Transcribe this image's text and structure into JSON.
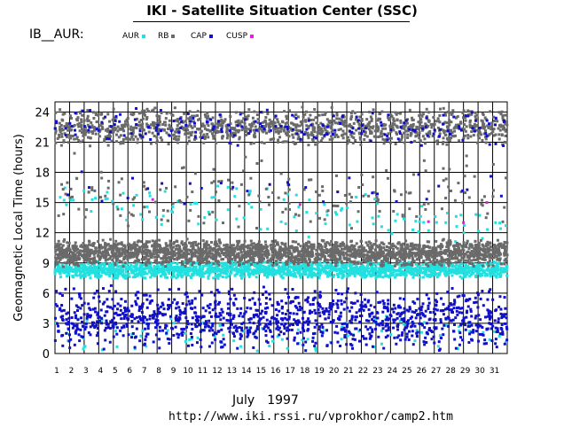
{
  "header": {
    "title": "IKI - Satellite Situation Center (SSC)",
    "panel_label": "IB__AUR:"
  },
  "legend": [
    {
      "label": "AUR",
      "color": "#22e0e0"
    },
    {
      "label": "RB",
      "color": "#6a6a6a"
    },
    {
      "label": "CAP",
      "color": "#1010c8"
    },
    {
      "label": "CUSP",
      "color": "#e020e0"
    }
  ],
  "footer": {
    "month": "July",
    "year": "1997",
    "url": "http://www.iki.rssi.ru/vprokhor/camp2.htm"
  },
  "chart_data": {
    "type": "scatter",
    "xlabel": "",
    "ylabel": "Geomagnetic Local Time (hours)",
    "x_ticks": [
      "1",
      "2",
      "3",
      "4",
      "5",
      "6",
      "7",
      "8",
      "9",
      "10",
      "11",
      "12",
      "13",
      "14",
      "15",
      "16",
      "17",
      "18",
      "19",
      "20",
      "21",
      "22",
      "23",
      "24",
      "25",
      "26",
      "27",
      "28",
      "29",
      "30",
      "31"
    ],
    "y_ticks": [
      "0",
      "3",
      "6",
      "9",
      "12",
      "15",
      "18",
      "21",
      "24"
    ],
    "xlim": [
      1,
      32
    ],
    "ylim": [
      0,
      25
    ],
    "grid": true,
    "series": [
      {
        "name": "AUR",
        "color": "#22e0e0",
        "bands": [
          {
            "center": 8.3,
            "spread": 0.9,
            "per_day": 60
          },
          {
            "center": 15.5,
            "spread": 2.5,
            "per_day": 4,
            "trend": -0.1
          },
          {
            "center": 2.0,
            "spread": 2.0,
            "per_day": 3
          }
        ]
      },
      {
        "name": "RB",
        "color": "#6a6a6a",
        "bands": [
          {
            "center": 10.0,
            "spread": 1.4,
            "per_day": 75
          },
          {
            "center": 22.5,
            "spread": 2.0,
            "per_day": 40
          },
          {
            "center": 16.0,
            "spread": 4.0,
            "per_day": 6
          }
        ]
      },
      {
        "name": "CAP",
        "color": "#1010c8",
        "bands": [
          {
            "center": 3.5,
            "spread": 3.3,
            "per_day": 40
          },
          {
            "center": 22.5,
            "spread": 2.0,
            "per_day": 6
          },
          {
            "center": 16.5,
            "spread": 2.0,
            "per_day": 1
          }
        ]
      },
      {
        "name": "CUSP",
        "color": "#e020e0",
        "points": [
          [
            7.7,
            15.3
          ],
          [
            17.8,
            14.8
          ],
          [
            26.6,
            13.1
          ],
          [
            29.0,
            13.0
          ],
          [
            30.6,
            15.0
          ]
        ]
      }
    ]
  }
}
